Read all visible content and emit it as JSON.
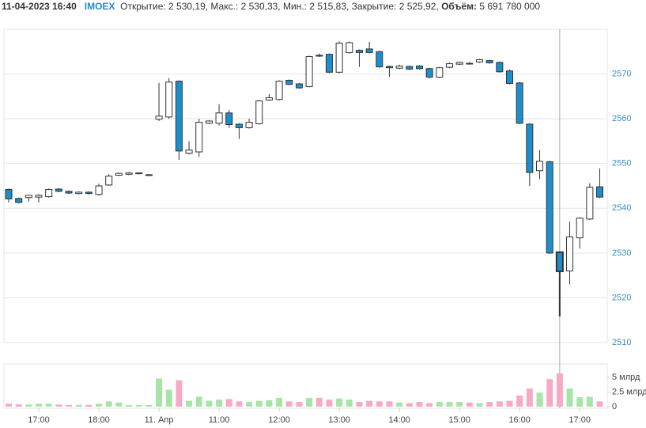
{
  "header": {
    "datetime": "11-04-2023 16:40",
    "ticker": "IMOEX",
    "prices": "Открытие: 2 530,19, Макс.: 2 530,33, Мин.: 2 515,83, Закрытие: 2 525,92,",
    "volume_label": "Объём:",
    "volume": "5 691 780 000"
  },
  "chart_data": [
    {
      "type": "candlestick",
      "up_color": "#ffffff",
      "down_color": "#1e8ecb",
      "outline": "#333333",
      "crosshair_index": 55,
      "open": [
        2544.2,
        2542.2,
        2542.4,
        2542.5,
        2542.6,
        2544.3,
        2543.8,
        2543.3,
        2543.6,
        2543.1,
        2545.2,
        2547.4,
        2547.6,
        2547.8,
        2547.5,
        2559.9,
        2560.4,
        2568.4,
        2552.3,
        2552.6,
        2559.0,
        2559.0,
        2561.3,
        2558.8,
        2558.0,
        2558.9,
        2564.2,
        2564.3,
        2568.6,
        2567.8,
        2567.2,
        2574.2,
        2574.4,
        2570.4,
        2574.8,
        2575.3,
        2575.6,
        2575.0,
        2571.7,
        2571.3,
        2571.7,
        2571.8,
        2571.2,
        2569.3,
        2571.5,
        2572.2,
        2572.4,
        2572.7,
        2573.0,
        2572.6,
        2570.7,
        2568.0,
        2558.8,
        2548.4,
        2550.4,
        2530.19,
        2526.0,
        2533.4,
        2537.6,
        2544.8
      ],
      "high": [
        2544.4,
        2542.4,
        2543.0,
        2543.2,
        2544.4,
        2544.5,
        2544.0,
        2543.8,
        2543.8,
        2545.5,
        2547.6,
        2548.0,
        2548.1,
        2548.0,
        2547.6,
        2568.0,
        2569.1,
        2568.6,
        2555.0,
        2560.0,
        2559.7,
        2563.3,
        2562.0,
        2559.0,
        2560.0,
        2564.2,
        2565.5,
        2568.6,
        2568.8,
        2568.0,
        2574.1,
        2574.6,
        2574.6,
        2577.3,
        2577.3,
        2575.5,
        2577.2,
        2575.2,
        2571.9,
        2572.1,
        2571.9,
        2572.0,
        2571.4,
        2571.6,
        2572.6,
        2572.8,
        2572.7,
        2573.4,
        2573.2,
        2572.8,
        2571.0,
        2568.2,
        2559.0,
        2553.0,
        2550.6,
        2530.33,
        2537.0,
        2538.0,
        2545.6,
        2548.9
      ],
      "low": [
        2541.3,
        2541.1,
        2541.5,
        2541.3,
        2542.4,
        2543.6,
        2543.2,
        2543.1,
        2543.1,
        2542.8,
        2545.0,
        2547.2,
        2547.4,
        2547.6,
        2547.3,
        2559.5,
        2560.0,
        2550.8,
        2552.0,
        2551.5,
        2558.8,
        2558.5,
        2558.0,
        2555.5,
        2557.8,
        2558.7,
        2564.0,
        2564.1,
        2567.5,
        2566.7,
        2567.0,
        2573.8,
        2570.2,
        2570.2,
        2574.6,
        2571.6,
        2574.6,
        2571.4,
        2569.4,
        2571.1,
        2570.9,
        2571.0,
        2569.0,
        2569.1,
        2571.3,
        2572.0,
        2572.1,
        2572.5,
        2572.3,
        2570.3,
        2567.7,
        2558.8,
        2545.0,
        2546.5,
        2529.8,
        2515.83,
        2523.0,
        2531.0,
        2537.4,
        2542.3
      ],
      "close": [
        2542.1,
        2541.3,
        2542.9,
        2542.9,
        2544.2,
        2543.8,
        2543.4,
        2543.6,
        2543.3,
        2545.0,
        2547.2,
        2547.8,
        2547.9,
        2547.9,
        2547.5,
        2560.6,
        2568.2,
        2552.8,
        2553.0,
        2559.2,
        2559.5,
        2561.3,
        2558.7,
        2558.0,
        2559.2,
        2564.0,
        2564.7,
        2568.4,
        2567.7,
        2566.9,
        2573.9,
        2574.0,
        2570.4,
        2576.9,
        2577.0,
        2574.8,
        2574.8,
        2571.6,
        2571.4,
        2571.8,
        2571.1,
        2571.2,
        2569.3,
        2571.4,
        2572.3,
        2572.6,
        2572.3,
        2573.2,
        2572.5,
        2570.5,
        2567.9,
        2559.0,
        2548.0,
        2550.5,
        2530.0,
        2525.92,
        2533.6,
        2537.8,
        2544.7,
        2542.5
      ],
      "ylim": [
        2510,
        2580
      ],
      "yticks": [
        2510,
        2520,
        2530,
        2540,
        2550,
        2560,
        2570
      ],
      "grid": true
    },
    {
      "type": "bar",
      "up_color": "#a8e4a8",
      "down_color": "#f6aac6",
      "categories": [
        null,
        null,
        null,
        "17:00",
        null,
        null,
        null,
        null,
        null,
        "18:00",
        null,
        null,
        null,
        null,
        null,
        "11. Апр",
        null,
        null,
        null,
        null,
        null,
        "11:00",
        null,
        null,
        null,
        null,
        null,
        "12:00",
        null,
        null,
        null,
        null,
        null,
        "13:00",
        null,
        null,
        null,
        null,
        null,
        "14:00",
        null,
        null,
        null,
        null,
        null,
        "15:00",
        null,
        null,
        null,
        null,
        null,
        "16:00",
        null,
        null,
        null,
        null,
        null,
        "17:00",
        null,
        null
      ],
      "values": [
        0.5,
        0.4,
        0.35,
        0.5,
        0.5,
        0.35,
        0.3,
        0.3,
        0.3,
        0.5,
        0.9,
        0.7,
        0.3,
        0.3,
        0.3,
        4.8,
        2.9,
        4.5,
        1.0,
        1.7,
        1.0,
        1.2,
        1.3,
        0.9,
        0.8,
        1.0,
        1.1,
        1.5,
        0.9,
        0.8,
        1.5,
        1.5,
        1.2,
        1.4,
        1.2,
        0.8,
        1.0,
        0.9,
        0.9,
        0.7,
        0.6,
        0.8,
        0.6,
        0.8,
        0.8,
        0.8,
        0.7,
        0.6,
        0.8,
        0.9,
        1.0,
        1.9,
        3.1,
        2.4,
        4.7,
        5.69178,
        3.1,
        1.6,
        1.7,
        0.9
      ],
      "ylim": [
        0,
        7.3
      ],
      "yticks": [
        0,
        {
          "value": 2.5,
          "label": "2.5 млрд"
        },
        {
          "value": 5,
          "label": "5 млрд"
        }
      ]
    }
  ]
}
